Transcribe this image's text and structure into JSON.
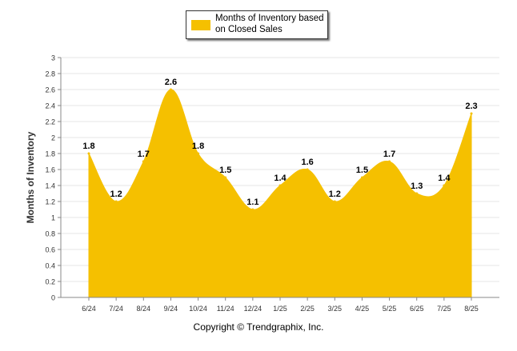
{
  "legend": {
    "label": "Months of Inventory based on Closed Sales"
  },
  "copyright": "Copyright © Trendgraphix, Inc.",
  "chart_data": {
    "type": "area",
    "title": "",
    "xlabel": "",
    "ylabel": "Months of Inventory",
    "categories": [
      "6/24",
      "7/24",
      "8/24",
      "9/24",
      "10/24",
      "11/24",
      "12/24",
      "1/25",
      "2/25",
      "3/25",
      "4/25",
      "5/25",
      "6/25",
      "7/25",
      "8/25"
    ],
    "series": [
      {
        "name": "Months of Inventory based on Closed Sales",
        "values": [
          1.8,
          1.2,
          1.7,
          2.6,
          1.8,
          1.5,
          1.1,
          1.4,
          1.6,
          1.2,
          1.5,
          1.7,
          1.3,
          1.4,
          2.3
        ],
        "color": "#f5c000"
      }
    ],
    "yticks": [
      "0",
      "0.2",
      "0.4",
      "0.6",
      "0.8",
      "1",
      "1.2",
      "1.4",
      "1.6",
      "1.8",
      "2",
      "2.2",
      "2.4",
      "2.6",
      "2.8",
      "3"
    ],
    "ylim": [
      0,
      3
    ],
    "grid": true,
    "legend_position": "top"
  }
}
